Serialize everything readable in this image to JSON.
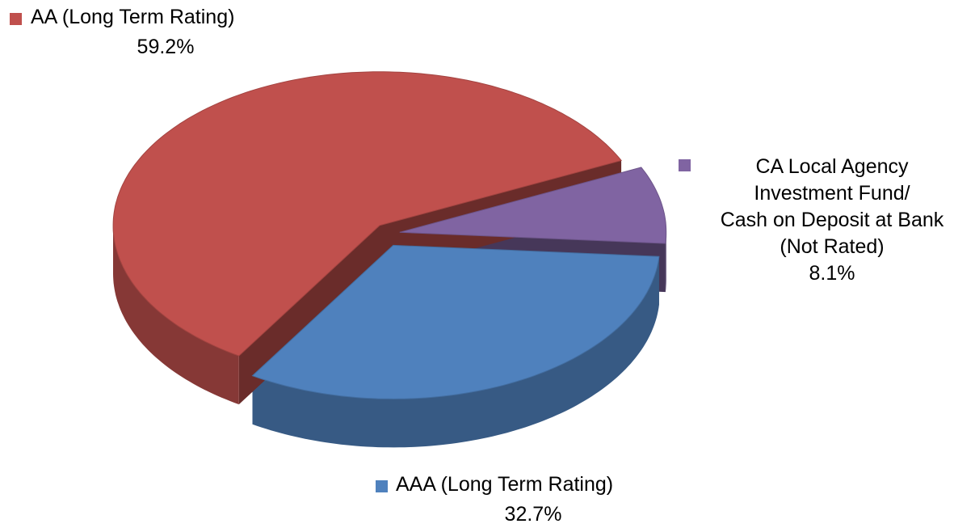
{
  "chart_data": {
    "type": "pie3d",
    "categories": [
      "AA (Long Term Rating)",
      "AAA  (Long Term Rating)",
      "CA Local Agency\nInvestment Fund/\nCash on Deposit at Bank\n(Not Rated)"
    ],
    "values": [
      59.2,
      32.7,
      8.1
    ],
    "value_labels": [
      "59.2%",
      "32.7%",
      "8.1%"
    ],
    "colors": [
      "#c0504d",
      "#4f81bd",
      "#8064a2"
    ]
  }
}
